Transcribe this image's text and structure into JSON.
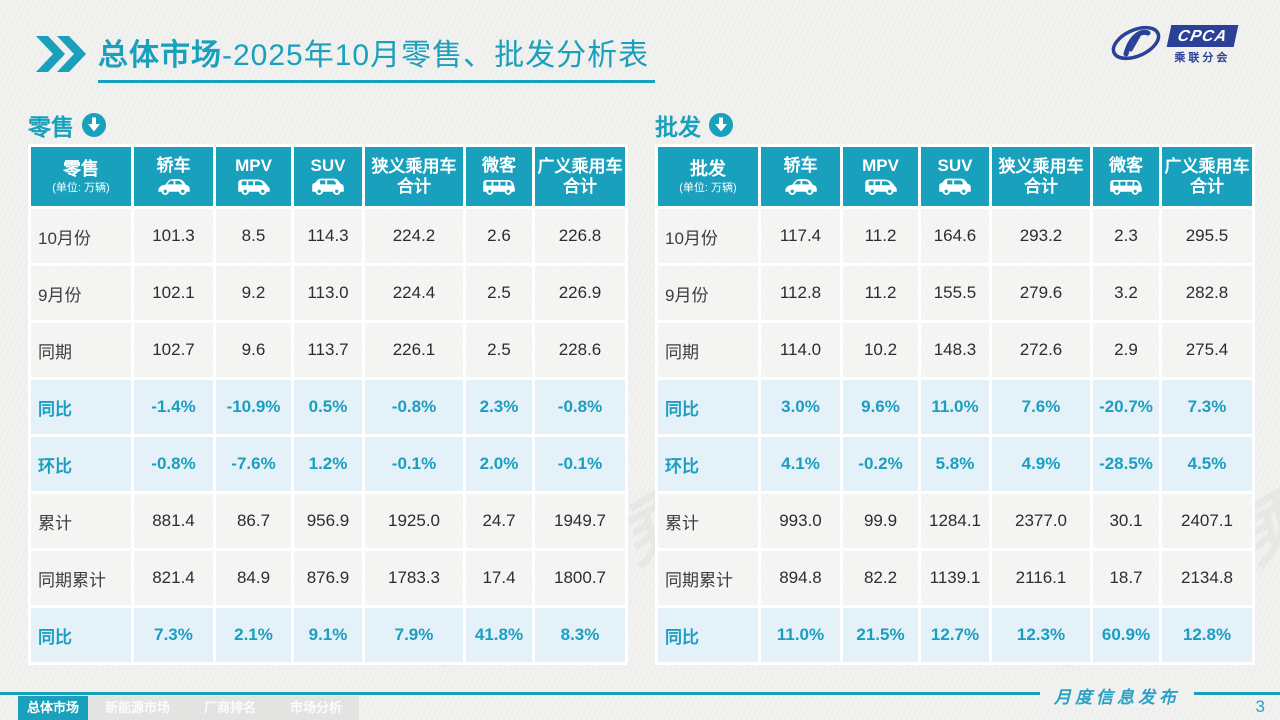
{
  "title": {
    "bold": "总体市场",
    "rest": "-2025年10月零售、批发分析表"
  },
  "logo": {
    "cpca": "CPCA",
    "subtitle": "乘联分会"
  },
  "watermark": "CPCA 乘联分会",
  "footer": {
    "label": "月度信息发布",
    "page_number": "3"
  },
  "tabs": [
    {
      "label": "总体市场",
      "active": true
    },
    {
      "label": "新能源市场",
      "active": false
    },
    {
      "label": "厂商排名",
      "active": false
    },
    {
      "label": "市场分析",
      "active": false
    }
  ],
  "tables": [
    {
      "section_label": "零售",
      "unit_label": "(单位: 万辆)",
      "columns": [
        {
          "label": "轿车",
          "icon": "sedan"
        },
        {
          "label": "MPV",
          "icon": "mpv"
        },
        {
          "label": "SUV",
          "icon": "suv"
        },
        {
          "label": "狭义乘用车\n合计",
          "icon": null
        },
        {
          "label": "微客",
          "icon": "microvan"
        },
        {
          "label": "广义乘用车\n合计",
          "icon": null
        }
      ],
      "rows": [
        {
          "label": "10月份",
          "highlight": false,
          "values": [
            "101.3",
            "8.5",
            "114.3",
            "224.2",
            "2.6",
            "226.8"
          ]
        },
        {
          "label": "9月份",
          "highlight": false,
          "values": [
            "102.1",
            "9.2",
            "113.0",
            "224.4",
            "2.5",
            "226.9"
          ]
        },
        {
          "label": "同期",
          "highlight": false,
          "values": [
            "102.7",
            "9.6",
            "113.7",
            "226.1",
            "2.5",
            "228.6"
          ]
        },
        {
          "label": "同比",
          "highlight": true,
          "values": [
            "-1.4%",
            "-10.9%",
            "0.5%",
            "-0.8%",
            "2.3%",
            "-0.8%"
          ]
        },
        {
          "label": "环比",
          "highlight": true,
          "values": [
            "-0.8%",
            "-7.6%",
            "1.2%",
            "-0.1%",
            "2.0%",
            "-0.1%"
          ]
        },
        {
          "label": "累计",
          "highlight": false,
          "values": [
            "881.4",
            "86.7",
            "956.9",
            "1925.0",
            "24.7",
            "1949.7"
          ]
        },
        {
          "label": "同期累计",
          "highlight": false,
          "values": [
            "821.4",
            "84.9",
            "876.9",
            "1783.3",
            "17.4",
            "1800.7"
          ]
        },
        {
          "label": "同比",
          "highlight": true,
          "values": [
            "7.3%",
            "2.1%",
            "9.1%",
            "7.9%",
            "41.8%",
            "8.3%"
          ]
        }
      ]
    },
    {
      "section_label": "批发",
      "unit_label": "(单位: 万辆)",
      "columns": [
        {
          "label": "轿车",
          "icon": "sedan"
        },
        {
          "label": "MPV",
          "icon": "mpv"
        },
        {
          "label": "SUV",
          "icon": "suv"
        },
        {
          "label": "狭义乘用车\n合计",
          "icon": null
        },
        {
          "label": "微客",
          "icon": "microvan"
        },
        {
          "label": "广义乘用车\n合计",
          "icon": null
        }
      ],
      "rows": [
        {
          "label": "10月份",
          "highlight": false,
          "values": [
            "117.4",
            "11.2",
            "164.6",
            "293.2",
            "2.3",
            "295.5"
          ]
        },
        {
          "label": "9月份",
          "highlight": false,
          "values": [
            "112.8",
            "11.2",
            "155.5",
            "279.6",
            "3.2",
            "282.8"
          ]
        },
        {
          "label": "同期",
          "highlight": false,
          "values": [
            "114.0",
            "10.2",
            "148.3",
            "272.6",
            "2.9",
            "275.4"
          ]
        },
        {
          "label": "同比",
          "highlight": true,
          "values": [
            "3.0%",
            "9.6%",
            "11.0%",
            "7.6%",
            "-20.7%",
            "7.3%"
          ]
        },
        {
          "label": "环比",
          "highlight": true,
          "values": [
            "4.1%",
            "-0.2%",
            "5.8%",
            "4.9%",
            "-28.5%",
            "4.5%"
          ]
        },
        {
          "label": "累计",
          "highlight": false,
          "values": [
            "993.0",
            "99.9",
            "1284.1",
            "2377.0",
            "30.1",
            "2407.1"
          ]
        },
        {
          "label": "同期累计",
          "highlight": false,
          "values": [
            "894.8",
            "82.2",
            "1139.1",
            "2116.1",
            "18.7",
            "2134.8"
          ]
        },
        {
          "label": "同比",
          "highlight": true,
          "values": [
            "11.0%",
            "21.5%",
            "12.7%",
            "12.3%",
            "60.9%",
            "12.8%"
          ]
        }
      ]
    }
  ]
}
